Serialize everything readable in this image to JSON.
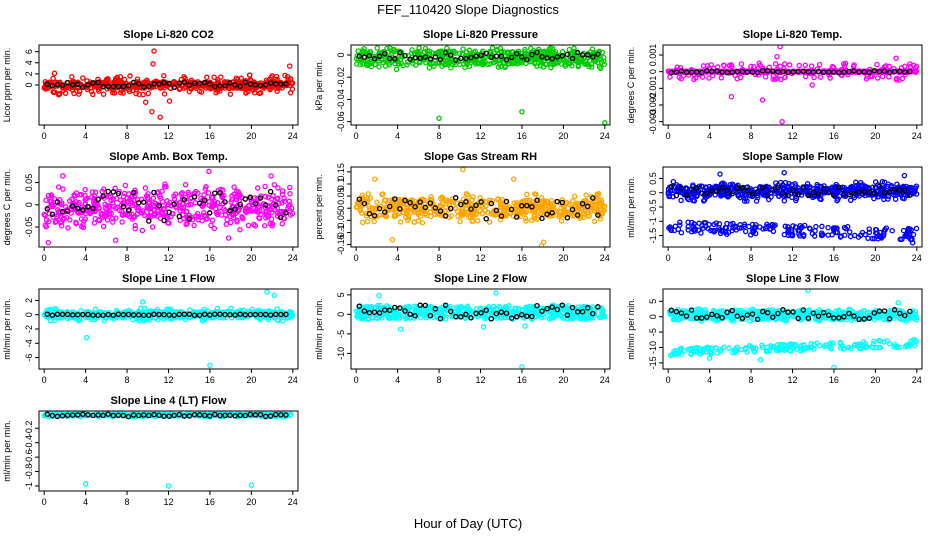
{
  "figure": {
    "title": "FEF_110420  Slope Diagnostics",
    "xlabel": "Hour of Day (UTC)"
  },
  "chart_data": [
    {
      "type": "scatter",
      "title": "Slope Li-820 CO2",
      "ylabel": "Licor ppm per min.",
      "xticks": [
        0,
        4,
        8,
        12,
        16,
        20,
        24
      ],
      "xlim": [
        -0.5,
        24.5
      ],
      "yticks": [
        0,
        2,
        4,
        6
      ],
      "ylim": [
        -7.2,
        7.2
      ],
      "color": "#ff0000",
      "fill": {
        "center": 0,
        "halfwidth": 0.6,
        "spread": 1.8
      },
      "outliers": [
        [
          10.6,
          6.1
        ],
        [
          1.0,
          2.1
        ],
        [
          10.5,
          3.8
        ],
        [
          23.7,
          3.4
        ],
        [
          11.2,
          -5.8
        ],
        [
          10.4,
          -4.8
        ],
        [
          1.5,
          -1.6
        ],
        [
          23.5,
          1.5
        ],
        [
          9.8,
          -3.1
        ],
        [
          23.8,
          -1.4
        ],
        [
          4.7,
          -1.7
        ],
        [
          12.1,
          -2.9
        ]
      ],
      "black_band": {
        "center": 0.05,
        "spread": 0.45
      }
    },
    {
      "type": "scatter",
      "title": "Slope Li-820 Pressure",
      "ylabel": "kPa per min.",
      "xticks": [
        0,
        4,
        8,
        12,
        16,
        20,
        24
      ],
      "xlim": [
        -0.5,
        24.5
      ],
      "yticks": [
        -0.06,
        -0.04,
        -0.02,
        0
      ],
      "ylim": [
        -0.063,
        0.009
      ],
      "color": "#00cc00",
      "fill": {
        "center": -0.0025,
        "halfwidth": 0.006,
        "spread": 0.009
      },
      "outliers": [
        [
          8.0,
          -0.057
        ],
        [
          16.0,
          -0.051
        ],
        [
          24.0,
          -0.061
        ],
        [
          3.9,
          -0.013
        ],
        [
          23.6,
          -0.012
        ],
        [
          14.4,
          -0.01
        ]
      ],
      "black_band": {
        "center": -0.001,
        "spread": 0.0035
      }
    },
    {
      "type": "scatter",
      "title": "Slope Li-820 Temp.",
      "ylabel": "degrees C per min.",
      "xticks": [
        0,
        4,
        8,
        12,
        16,
        20,
        24
      ],
      "xlim": [
        -0.5,
        24.5
      ],
      "yticks": [
        -0.003,
        -0.002,
        -0.001,
        0,
        0.001
      ],
      "ylim": [
        -0.0032,
        0.0016
      ],
      "color": "#ff00ff",
      "fill": {
        "center": 0.0,
        "halfwidth": 4e-05,
        "spread": 0.0005
      },
      "outliers": [
        [
          11.0,
          -0.003
        ],
        [
          10.8,
          0.0015
        ],
        [
          10.5,
          0.0009
        ],
        [
          6.1,
          -0.0015
        ],
        [
          9.1,
          -0.0017
        ],
        [
          13.9,
          -0.0008
        ],
        [
          22.0,
          0.0008
        ],
        [
          22.3,
          -0.0005
        ]
      ],
      "black_band": {
        "center": 0.0,
        "spread": 6e-05
      }
    },
    {
      "type": "scatter",
      "title": "Slope Amb. Box Temp.",
      "ylabel": "degrees C per min.",
      "xticks": [
        0,
        4,
        8,
        12,
        16,
        20,
        24
      ],
      "xlim": [
        -0.5,
        24.5
      ],
      "yticks": [
        -0.05,
        0,
        0.05
      ],
      "ylim": [
        -0.095,
        0.085
      ],
      "color": "#ff00ff",
      "fill": {
        "center": -0.005,
        "halfwidth": 0.0,
        "spread": 0.055
      },
      "outliers": [
        [
          0.4,
          -0.085
        ],
        [
          15.9,
          0.075
        ],
        [
          17.8,
          -0.075
        ],
        [
          21.9,
          0.065
        ],
        [
          6.9,
          -0.08
        ],
        [
          1.8,
          0.065
        ]
      ],
      "black_band": {
        "center": -0.005,
        "spread": 0.035
      }
    },
    {
      "type": "scatter",
      "title": "Slope Gas Stream RH",
      "ylabel": "percent per min.",
      "xticks": [
        0,
        4,
        8,
        12,
        16,
        20,
        24
      ],
      "xlim": [
        -0.5,
        24.5
      ],
      "yticks": [
        -0.15,
        -0.1,
        -0.05,
        0,
        0.05,
        0.1,
        0.15
      ],
      "ylim": [
        -0.16,
        0.17
      ],
      "color": "#ffa500",
      "fill": {
        "center": 0.0,
        "halfwidth": 0.035,
        "spread": 0.06
      },
      "outliers": [
        [
          17.9,
          -0.155
        ],
        [
          18.1,
          -0.14
        ],
        [
          10.3,
          0.16
        ],
        [
          3.5,
          -0.13
        ],
        [
          1.8,
          0.12
        ],
        [
          15.2,
          0.12
        ]
      ],
      "black_band": {
        "center": 0.0,
        "spread": 0.045
      }
    },
    {
      "type": "scatter",
      "title": "Slope Sample Flow",
      "ylabel": "ml/min per min.",
      "xticks": [
        0,
        4,
        8,
        12,
        16,
        20,
        24
      ],
      "xlim": [
        -0.5,
        24.5
      ],
      "yticks": [
        -1.5,
        -1,
        -0.5,
        0,
        0.5
      ],
      "ylim": [
        -1.9,
        0.9
      ],
      "color": "#0000ff",
      "fill": {
        "center": 0.05,
        "halfwidth": 0.18,
        "spread": 0.35
      },
      "bands": [
        {
          "start": -1.2,
          "end": -1.45,
          "spread": 0.2
        }
      ],
      "outliers": [
        [
          23.6,
          -1.75
        ],
        [
          11.2,
          0.7
        ],
        [
          22.8,
          0.6
        ],
        [
          5.0,
          0.65
        ]
      ],
      "black_band": {
        "center": 0.05,
        "spread": 0.18
      }
    },
    {
      "type": "scatter",
      "title": "Slope Line 1 Flow",
      "ylabel": "ml/min per min.",
      "xticks": [
        0,
        4,
        8,
        12,
        16,
        20,
        24
      ],
      "xlim": [
        -0.5,
        24.5
      ],
      "yticks": [
        -6,
        -4,
        -2,
        0,
        2
      ],
      "ylim": [
        -7.6,
        3.6
      ],
      "color": "#00ffff",
      "fill": {
        "center": 0.0,
        "halfwidth": 0.45,
        "spread": 0.9
      },
      "outliers": [
        [
          16.0,
          -7.1
        ],
        [
          4.1,
          -3.2
        ],
        [
          21.5,
          3.2
        ],
        [
          22.2,
          2.7
        ],
        [
          9.5,
          1.8
        ]
      ],
      "black_band": {
        "center": 0.0,
        "spread": 0.08
      }
    },
    {
      "type": "scatter",
      "title": "Slope Line 2 Flow",
      "ylabel": "ml/min per min.",
      "xticks": [
        0,
        4,
        8,
        12,
        16,
        20,
        24
      ],
      "xlim": [
        -0.5,
        24.5
      ],
      "yticks": [
        -10,
        -5,
        0,
        5
      ],
      "ylim": [
        -14,
        6.5
      ],
      "color": "#00ffff",
      "fill": {
        "center": 0.5,
        "halfwidth": 1.5,
        "spread": 1.8
      },
      "outliers": [
        [
          16.0,
          -13.5
        ],
        [
          4.3,
          -3.8
        ],
        [
          12.3,
          -3.2
        ],
        [
          16.3,
          -3.0
        ],
        [
          13.5,
          5.5
        ],
        [
          2.2,
          4.8
        ]
      ],
      "black_band": {
        "center": 0.6,
        "spread": 1.8
      }
    },
    {
      "type": "scatter",
      "title": "Slope Line 3 Flow",
      "ylabel": "ml/min per min.",
      "xticks": [
        0,
        4,
        8,
        12,
        16,
        20,
        24
      ],
      "xlim": [
        -0.5,
        24.5
      ],
      "yticks": [
        -15,
        -10,
        -5,
        0,
        5
      ],
      "ylim": [
        -17,
        9
      ],
      "color": "#00ffff",
      "fill": {
        "center": 0.5,
        "halfwidth": 1.5,
        "spread": 2.0
      },
      "bands": [
        {
          "start": -11.5,
          "end": -8.5,
          "spread": 1.2
        }
      ],
      "outliers": [
        [
          16.0,
          -16.5
        ],
        [
          13.5,
          8.5
        ],
        [
          8.9,
          -14.0
        ],
        [
          4.0,
          -13.5
        ],
        [
          22.2,
          4.5
        ]
      ],
      "black_band": {
        "center": 0.6,
        "spread": 1.7
      }
    },
    {
      "type": "scatter",
      "title": "Slope Line 4 (LT) Flow",
      "ylabel": "ml/min per min.",
      "xticks": [
        0,
        4,
        8,
        12,
        16,
        20,
        24
      ],
      "xlim": [
        -0.5,
        24.5
      ],
      "yticks": [
        -1,
        -0.8,
        -0.6,
        -0.4,
        -0.2
      ],
      "ylim": [
        -1.07,
        0.04
      ],
      "color": "#00ffff",
      "fill": {
        "center": -0.015,
        "halfwidth": 0.01,
        "spread": 0.025
      },
      "outliers": [
        [
          4.0,
          -0.97
        ],
        [
          12.0,
          -1.0
        ],
        [
          20.0,
          -0.99
        ]
      ],
      "black_band": {
        "center": -0.02,
        "spread": 0.018
      }
    }
  ]
}
